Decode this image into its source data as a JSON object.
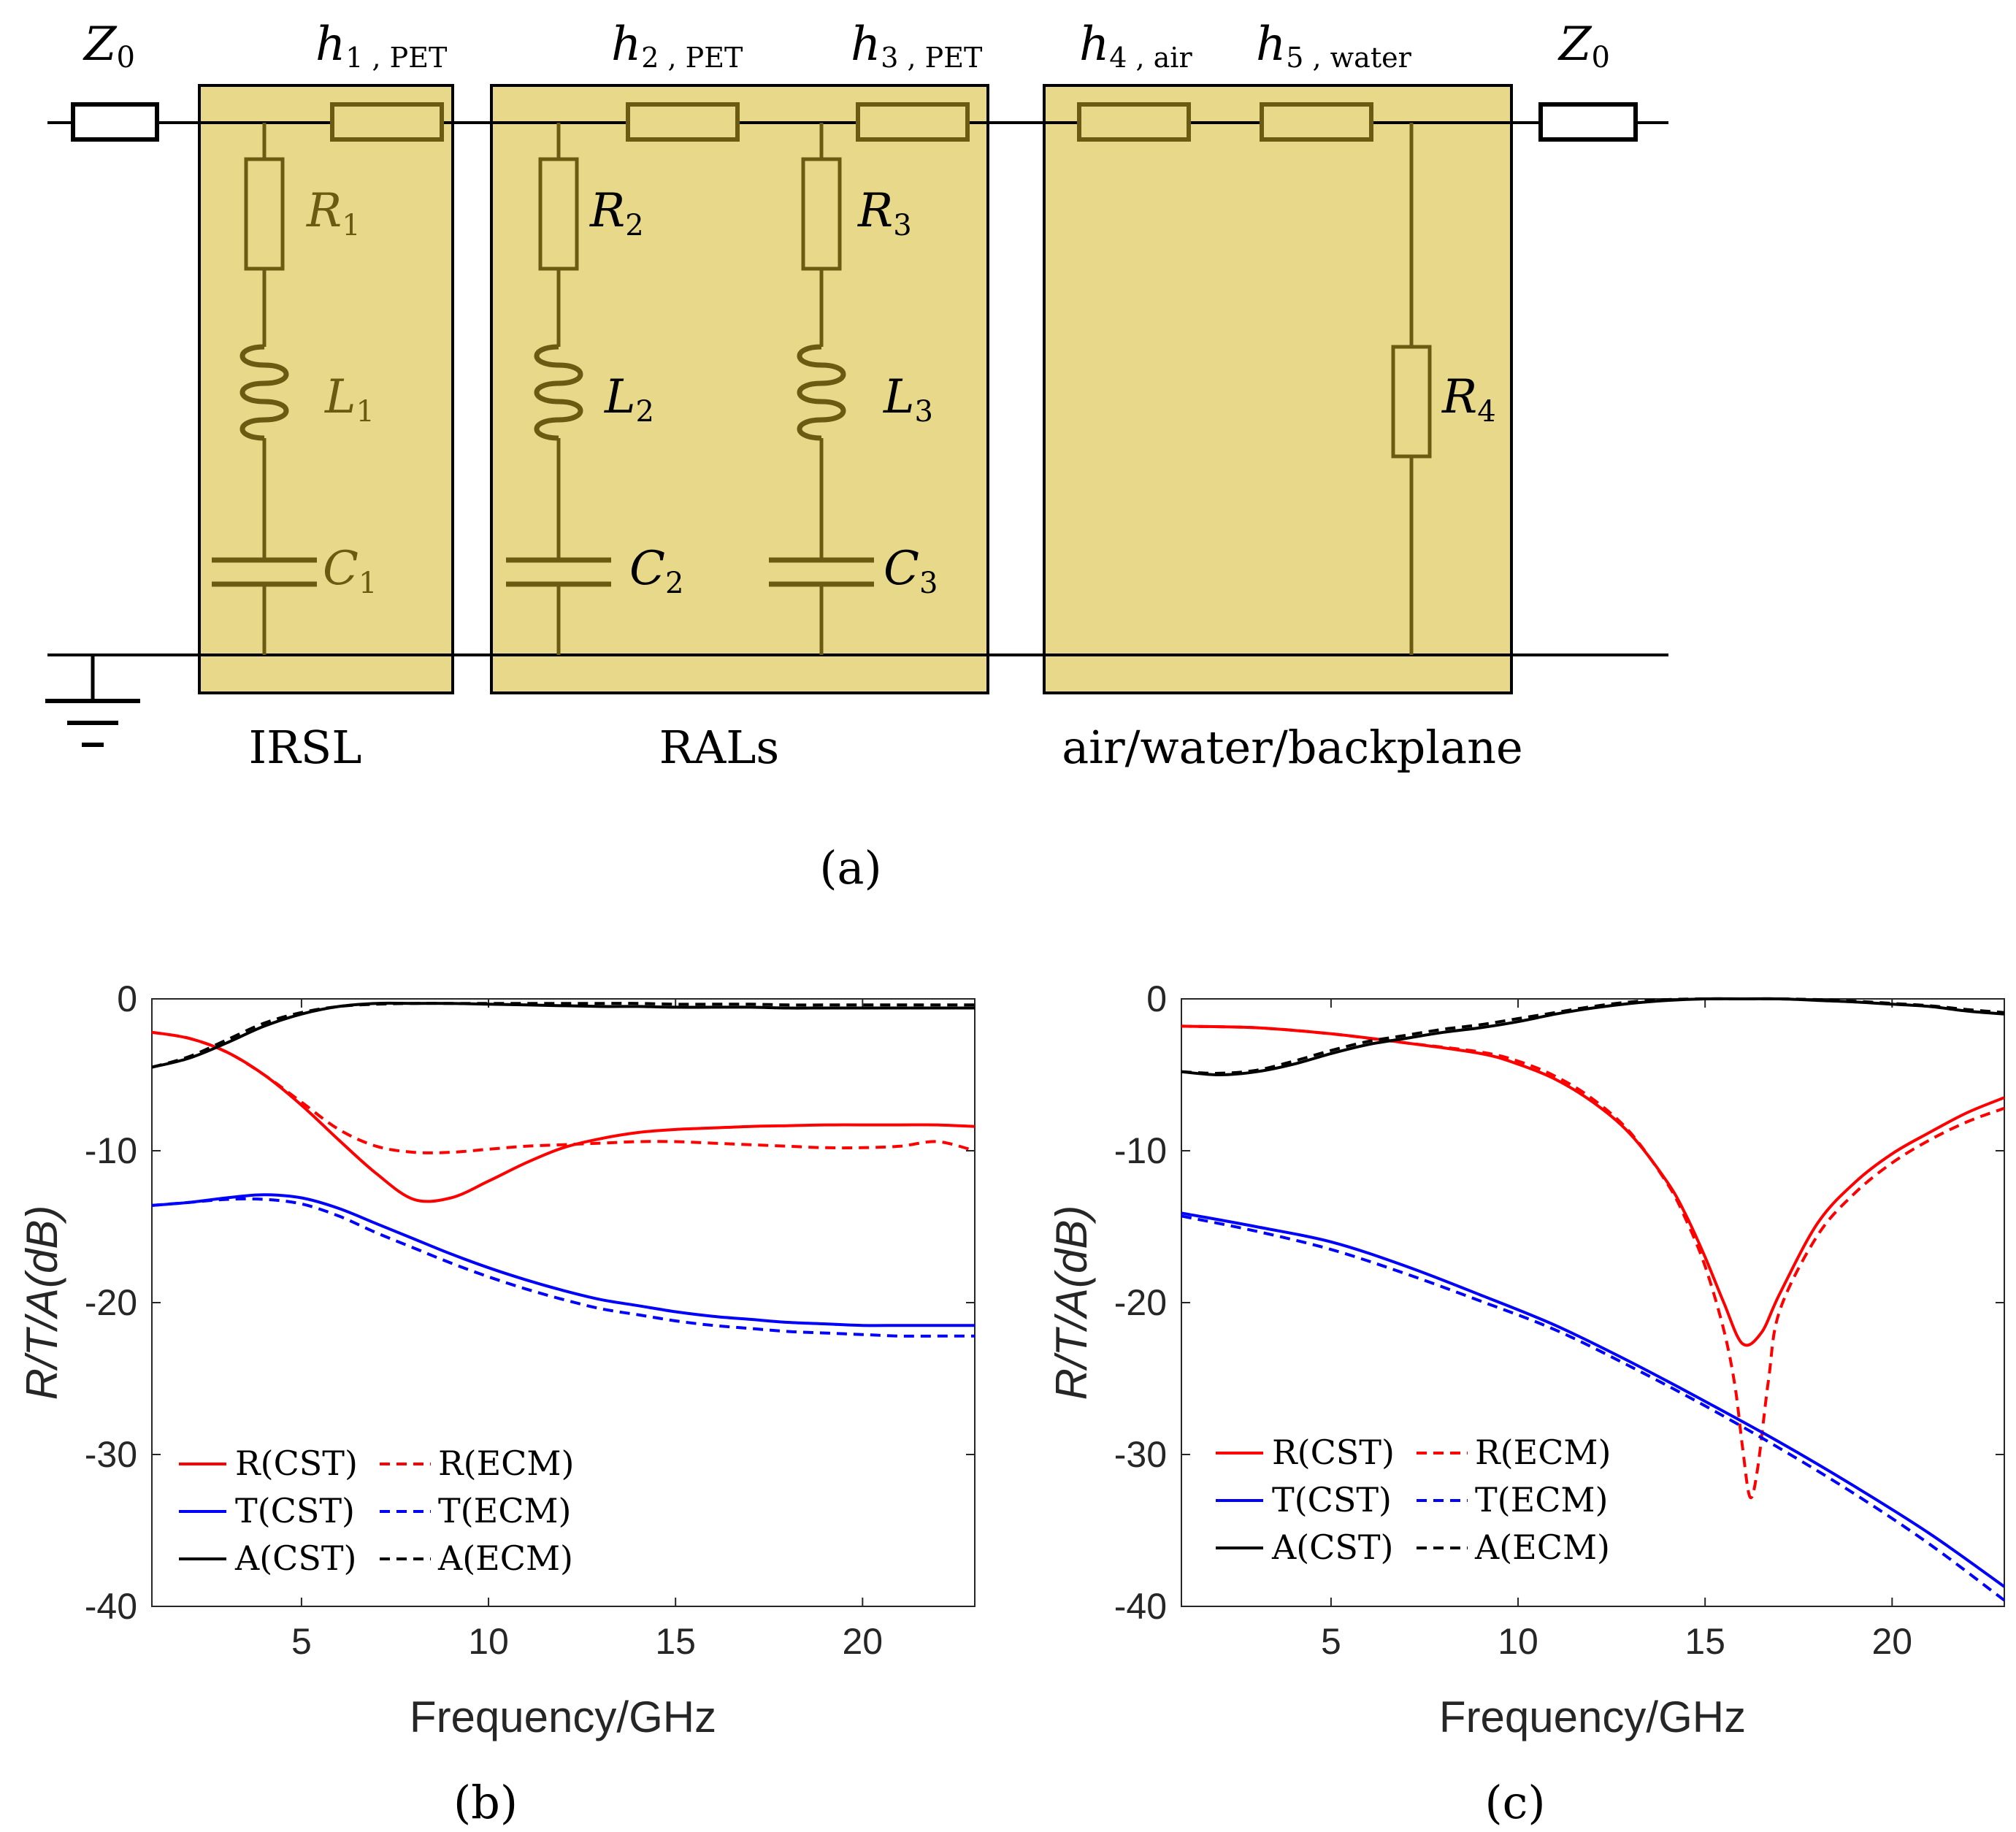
{
  "circuit": {
    "impedance_left": "Z",
    "impedance_left_sub": "0",
    "impedance_right": "Z",
    "impedance_right_sub": "0",
    "line_labels": [
      {
        "main": "h",
        "sub": "1 , PET"
      },
      {
        "main": "h",
        "sub": "2 , PET"
      },
      {
        "main": "h",
        "sub": "3 , PET"
      },
      {
        "main": "h",
        "sub": "4 , air"
      },
      {
        "main": "h",
        "sub": "5 , water"
      }
    ],
    "components": [
      {
        "main": "R",
        "sub": "1"
      },
      {
        "main": "L",
        "sub": "1"
      },
      {
        "main": "C",
        "sub": "1"
      },
      {
        "main": "R",
        "sub": "2"
      },
      {
        "main": "L",
        "sub": "2"
      },
      {
        "main": "C",
        "sub": "2"
      },
      {
        "main": "R",
        "sub": "3"
      },
      {
        "main": "L",
        "sub": "3"
      },
      {
        "main": "C",
        "sub": "3"
      },
      {
        "main": "R",
        "sub": "4"
      }
    ],
    "groups": [
      "IRSL",
      "RALs",
      "air/water/backplane"
    ],
    "colors": {
      "box_fill": "#e8d98a",
      "component": "#6b5a12",
      "wire": "#000000"
    }
  },
  "captions": {
    "a": "(a)",
    "b": "(b)",
    "c": "(c)"
  },
  "legend_labels": {
    "r_cst": "R(CST)",
    "r_ecm": "R(ECM)",
    "t_cst": "T(CST)",
    "t_ecm": "T(ECM)",
    "a_cst": "A(CST)",
    "a_ecm": "A(ECM)"
  },
  "chart_data": [
    {
      "id": "b",
      "type": "line",
      "xlabel": "Frequency/GHz",
      "ylabel": "R/T/A(dB)",
      "xlim": [
        1,
        23
      ],
      "ylim": [
        -40,
        0
      ],
      "xticks": [
        5,
        10,
        15,
        20
      ],
      "yticks": [
        0,
        -10,
        -20,
        -30,
        -40
      ],
      "legend": "bottom-left",
      "series": [
        {
          "name": "R(CST)",
          "color": "#ff0000",
          "dash": false,
          "x": [
            1,
            2,
            3,
            4,
            5,
            6,
            7,
            8,
            9,
            10,
            11,
            12,
            13,
            14,
            15,
            16,
            17,
            18,
            19,
            20,
            21,
            22,
            23
          ],
          "y": [
            -2.2,
            -2.6,
            -3.5,
            -5.0,
            -7.0,
            -9.3,
            -11.5,
            -13.2,
            -13.1,
            -12.0,
            -10.8,
            -9.8,
            -9.2,
            -8.8,
            -8.6,
            -8.5,
            -8.4,
            -8.35,
            -8.3,
            -8.3,
            -8.3,
            -8.3,
            -8.4
          ]
        },
        {
          "name": "R(ECM)",
          "color": "#ff0000",
          "dash": true,
          "x": [
            1,
            2,
            3,
            4,
            5,
            6,
            7,
            8,
            9,
            10,
            11,
            12,
            13,
            14,
            15,
            16,
            17,
            18,
            19,
            20,
            21,
            22,
            23
          ],
          "y": [
            -2.2,
            -2.6,
            -3.5,
            -5.0,
            -6.8,
            -8.6,
            -9.7,
            -10.1,
            -10.1,
            -9.9,
            -9.7,
            -9.6,
            -9.5,
            -9.4,
            -9.4,
            -9.5,
            -9.6,
            -9.7,
            -9.8,
            -9.8,
            -9.7,
            -9.4,
            -10.0
          ]
        },
        {
          "name": "T(CST)",
          "color": "#0000ff",
          "dash": false,
          "x": [
            1,
            2,
            3,
            4,
            5,
            6,
            7,
            8,
            9,
            10,
            11,
            12,
            13,
            14,
            15,
            16,
            17,
            18,
            19,
            20,
            21,
            22,
            23
          ],
          "y": [
            -13.6,
            -13.4,
            -13.1,
            -12.9,
            -13.1,
            -13.8,
            -14.8,
            -15.8,
            -16.8,
            -17.7,
            -18.5,
            -19.2,
            -19.8,
            -20.2,
            -20.6,
            -20.9,
            -21.1,
            -21.3,
            -21.4,
            -21.5,
            -21.5,
            -21.5,
            -21.5
          ]
        },
        {
          "name": "T(ECM)",
          "color": "#0000ff",
          "dash": true,
          "x": [
            1,
            2,
            3,
            4,
            5,
            6,
            7,
            8,
            9,
            10,
            11,
            12,
            13,
            14,
            15,
            16,
            17,
            18,
            19,
            20,
            21,
            22,
            23
          ],
          "y": [
            -13.6,
            -13.4,
            -13.2,
            -13.2,
            -13.5,
            -14.3,
            -15.4,
            -16.4,
            -17.4,
            -18.3,
            -19.1,
            -19.8,
            -20.4,
            -20.8,
            -21.2,
            -21.5,
            -21.7,
            -21.9,
            -22.0,
            -22.1,
            -22.2,
            -22.2,
            -22.2
          ]
        },
        {
          "name": "A(CST)",
          "color": "#000000",
          "dash": false,
          "x": [
            1,
            2,
            3,
            4,
            5,
            6,
            7,
            8,
            9,
            10,
            11,
            12,
            13,
            14,
            15,
            16,
            17,
            18,
            19,
            20,
            21,
            22,
            23
          ],
          "y": [
            -4.5,
            -3.9,
            -2.9,
            -1.8,
            -1.0,
            -0.5,
            -0.3,
            -0.3,
            -0.3,
            -0.35,
            -0.4,
            -0.45,
            -0.5,
            -0.5,
            -0.55,
            -0.55,
            -0.55,
            -0.6,
            -0.6,
            -0.6,
            -0.6,
            -0.6,
            -0.6
          ]
        },
        {
          "name": "A(ECM)",
          "color": "#000000",
          "dash": true,
          "x": [
            1,
            2,
            3,
            4,
            5,
            6,
            7,
            8,
            9,
            10,
            11,
            12,
            13,
            14,
            15,
            16,
            17,
            18,
            19,
            20,
            21,
            22,
            23
          ],
          "y": [
            -4.5,
            -3.8,
            -2.7,
            -1.6,
            -0.9,
            -0.5,
            -0.35,
            -0.3,
            -0.3,
            -0.3,
            -0.3,
            -0.3,
            -0.3,
            -0.3,
            -0.35,
            -0.35,
            -0.35,
            -0.4,
            -0.4,
            -0.4,
            -0.4,
            -0.4,
            -0.4
          ]
        }
      ]
    },
    {
      "id": "c",
      "type": "line",
      "xlabel": "Frequency/GHz",
      "ylabel": "R/T/A(dB)",
      "xlim": [
        1,
        23
      ],
      "ylim": [
        -40,
        0
      ],
      "xticks": [
        5,
        10,
        15,
        20
      ],
      "yticks": [
        0,
        -10,
        -20,
        -30,
        -40
      ],
      "legend": "bottom-left",
      "series": [
        {
          "name": "R(CST)",
          "color": "#ff0000",
          "dash": false,
          "x": [
            1,
            3,
            5,
            7,
            9,
            10,
            11,
            12,
            13,
            14,
            14.5,
            15,
            15.5,
            16,
            16.5,
            17,
            18,
            19,
            20,
            21,
            22,
            23
          ],
          "y": [
            -1.8,
            -1.9,
            -2.3,
            -2.9,
            -3.6,
            -4.3,
            -5.3,
            -6.8,
            -8.9,
            -12.1,
            -14.3,
            -17.0,
            -20.0,
            -22.7,
            -22.0,
            -19.4,
            -14.8,
            -12.1,
            -10.2,
            -8.8,
            -7.5,
            -6.5
          ]
        },
        {
          "name": "R(ECM)",
          "color": "#ff0000",
          "dash": true,
          "x": [
            1,
            3,
            5,
            7,
            9,
            10,
            11,
            12,
            13,
            14,
            14.5,
            15,
            15.5,
            15.8,
            16.0,
            16.2,
            16.4,
            16.7,
            17,
            18,
            19,
            20,
            21,
            22,
            23
          ],
          "y": [
            -1.8,
            -1.9,
            -2.3,
            -2.9,
            -3.5,
            -4.1,
            -5.1,
            -6.6,
            -8.8,
            -12.2,
            -14.6,
            -17.6,
            -21.8,
            -25.5,
            -29.5,
            -32.8,
            -31.0,
            -25.0,
            -20.5,
            -15.6,
            -12.8,
            -10.8,
            -9.3,
            -8.1,
            -7.2
          ]
        },
        {
          "name": "T(CST)",
          "color": "#0000ff",
          "dash": false,
          "x": [
            1,
            3,
            5,
            7,
            9,
            11,
            13,
            15,
            17,
            19,
            21,
            23
          ],
          "y": [
            -14.1,
            -15.0,
            -16.0,
            -17.6,
            -19.5,
            -21.5,
            -23.9,
            -26.5,
            -29.2,
            -32.1,
            -35.2,
            -38.7
          ]
        },
        {
          "name": "T(ECM)",
          "color": "#0000ff",
          "dash": true,
          "x": [
            1,
            3,
            5,
            7,
            9,
            11,
            13,
            15,
            17,
            19,
            21,
            23
          ],
          "y": [
            -14.3,
            -15.3,
            -16.5,
            -18.1,
            -19.9,
            -21.8,
            -24.2,
            -26.8,
            -29.6,
            -32.6,
            -35.9,
            -39.6
          ]
        },
        {
          "name": "A(CST)",
          "color": "#000000",
          "dash": false,
          "x": [
            1,
            2,
            3,
            4,
            5,
            6,
            7,
            8,
            9,
            10,
            11,
            12,
            13,
            14,
            15,
            16,
            17,
            18,
            19,
            20,
            21,
            22,
            23
          ],
          "y": [
            -4.8,
            -5.0,
            -4.8,
            -4.3,
            -3.6,
            -3.0,
            -2.6,
            -2.2,
            -1.9,
            -1.5,
            -1.0,
            -0.6,
            -0.3,
            -0.1,
            0.0,
            0.0,
            0.0,
            -0.1,
            -0.2,
            -0.35,
            -0.5,
            -0.8,
            -1.0
          ]
        },
        {
          "name": "A(ECM)",
          "color": "#000000",
          "dash": true,
          "x": [
            1,
            2,
            3,
            4,
            5,
            6,
            7,
            8,
            9,
            10,
            11,
            12,
            13,
            14,
            15,
            16,
            17,
            18,
            19,
            20,
            21,
            22,
            23
          ],
          "y": [
            -4.8,
            -4.9,
            -4.7,
            -4.1,
            -3.4,
            -2.8,
            -2.4,
            -2.0,
            -1.7,
            -1.3,
            -0.9,
            -0.5,
            -0.2,
            -0.05,
            0.0,
            0.0,
            0.0,
            -0.05,
            -0.15,
            -0.3,
            -0.45,
            -0.7,
            -0.9
          ]
        }
      ]
    }
  ]
}
